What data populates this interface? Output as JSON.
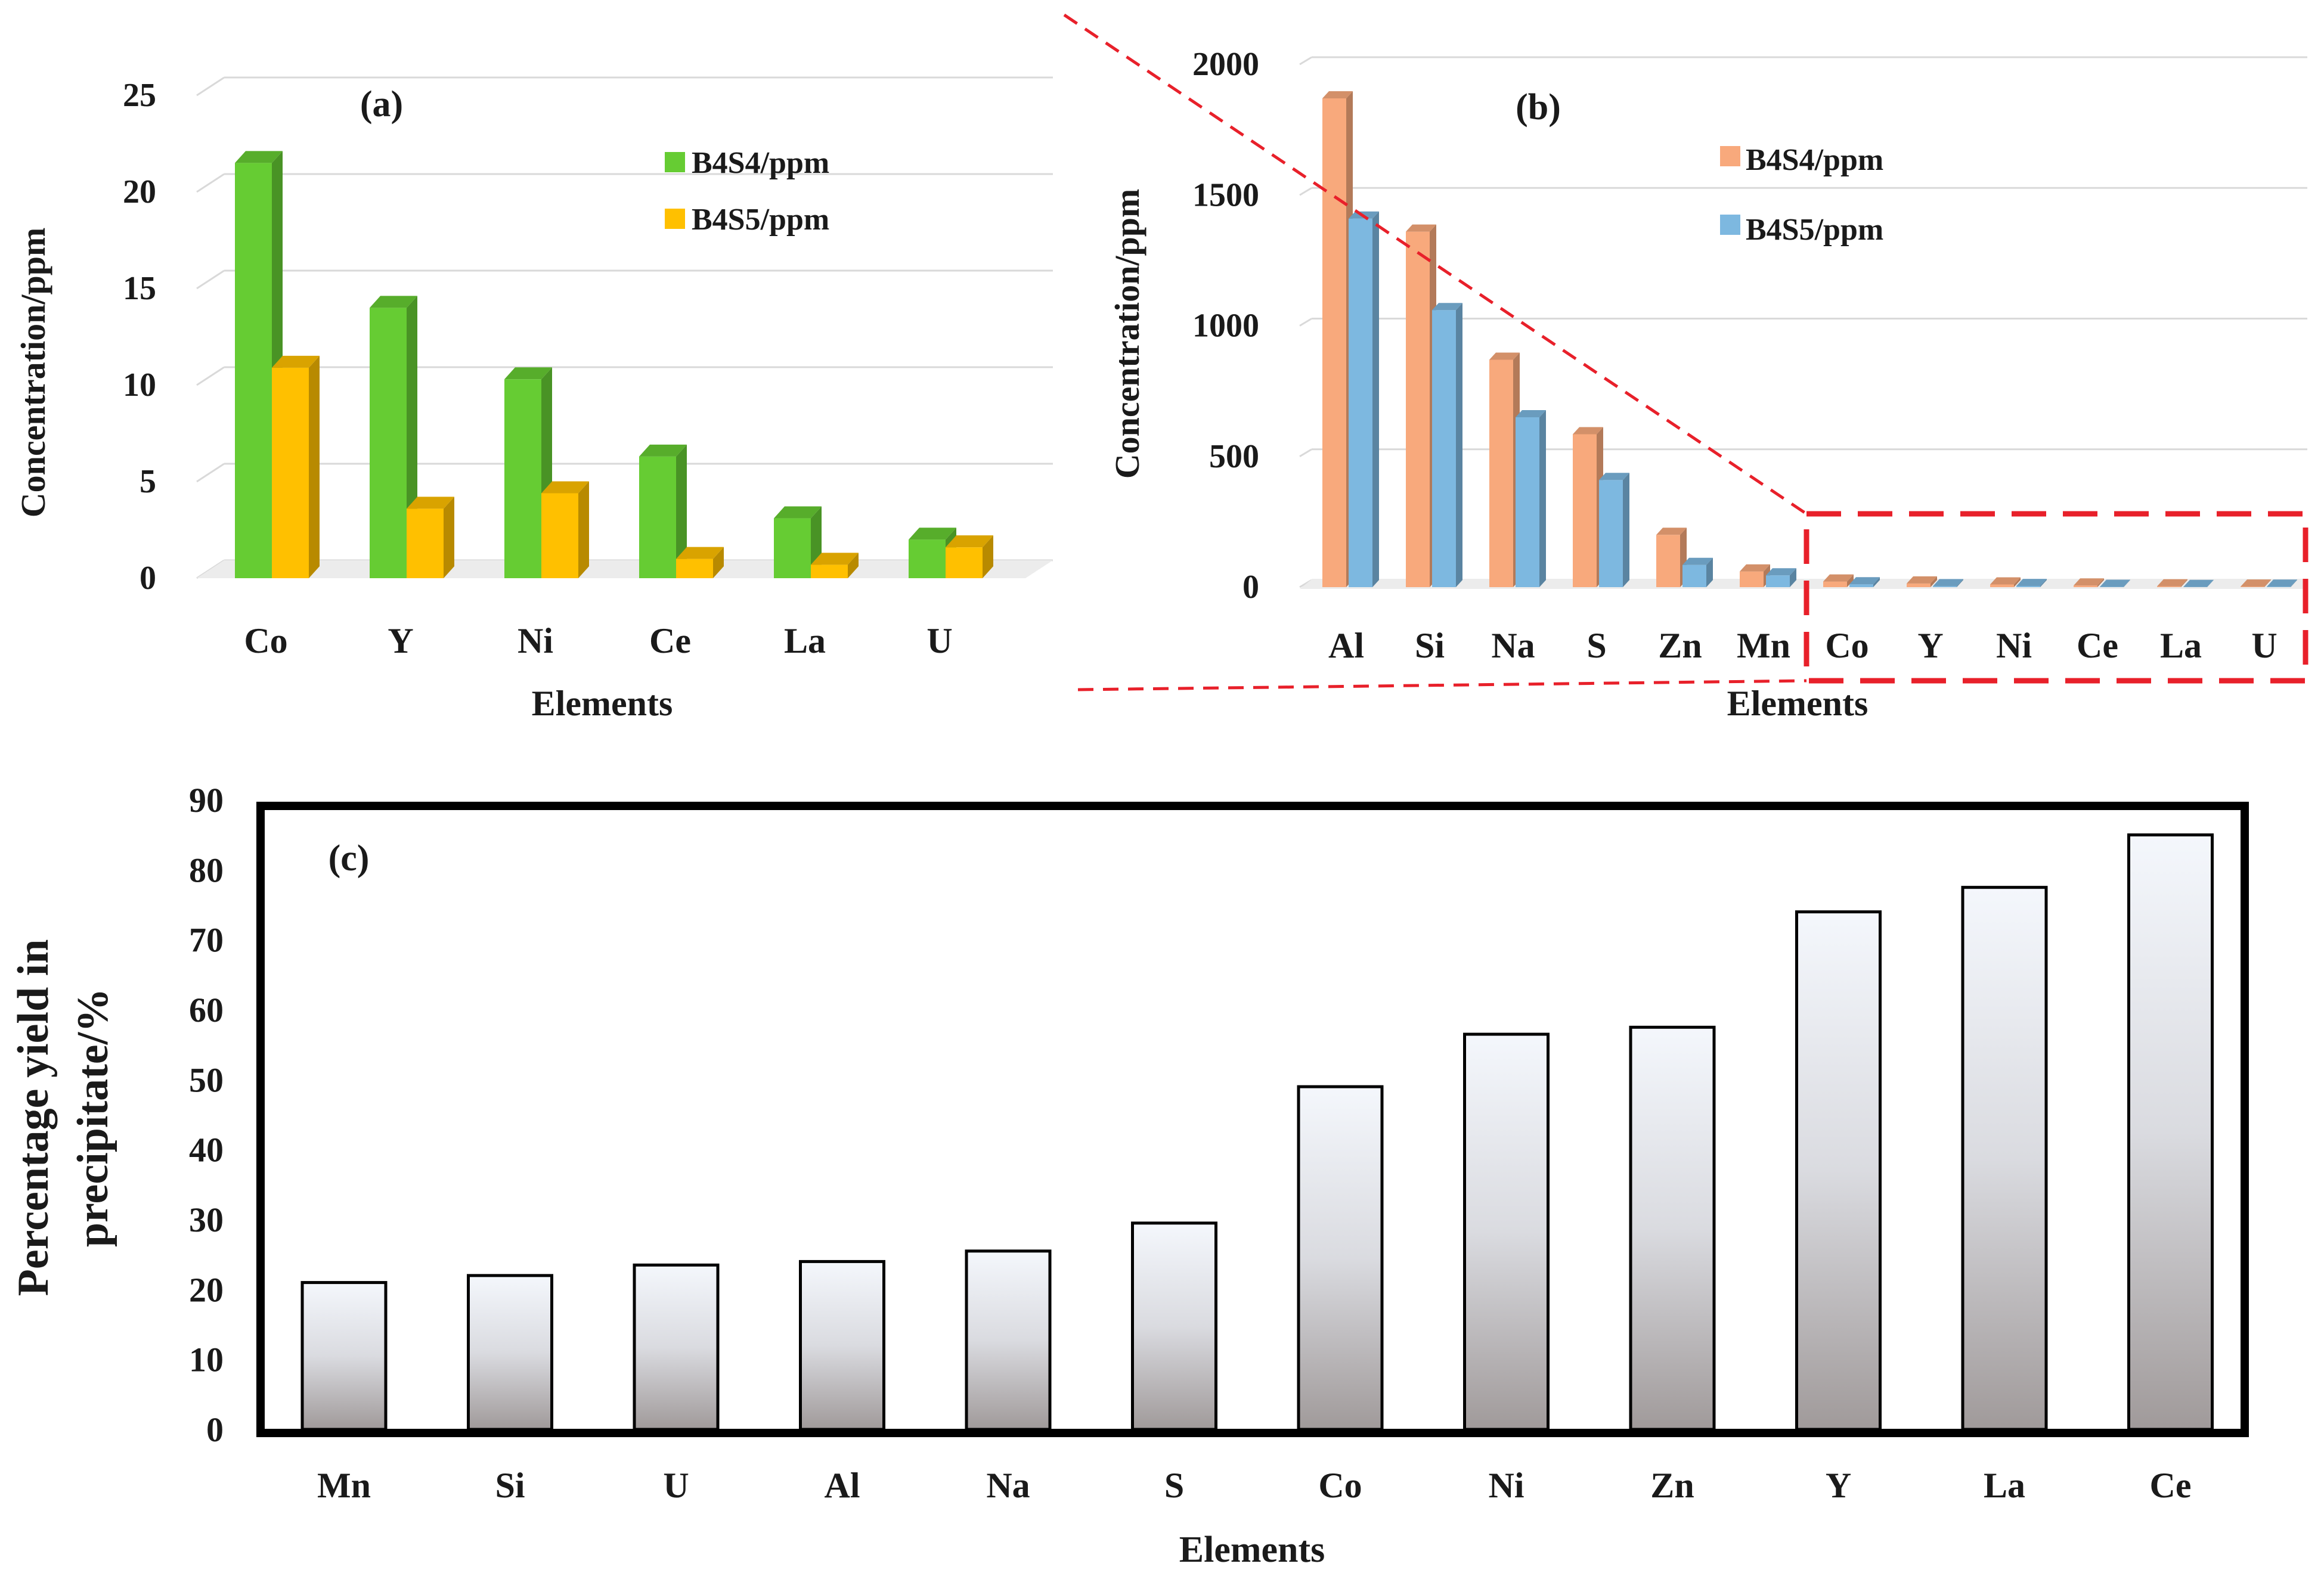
{
  "chart_data": [
    {
      "id": "a",
      "type": "bar",
      "panel_label": "(a)",
      "categories": [
        "Co",
        "Y",
        "Ni",
        "Ce",
        "La",
        "U"
      ],
      "series": [
        {
          "name": "B4S4/ppm",
          "values": [
            21.5,
            14.0,
            10.3,
            6.3,
            3.1,
            2.0
          ]
        },
        {
          "name": "B4S5/ppm",
          "values": [
            10.9,
            3.6,
            4.4,
            1.0,
            0.7,
            1.6
          ]
        }
      ],
      "colors": [
        "#66cc33",
        "#ffc000"
      ],
      "yticks": [
        0,
        5,
        10,
        15,
        20,
        25
      ],
      "ylim": [
        0,
        25
      ],
      "xlabel": "Elements",
      "ylabel": "Concentration/ppm",
      "legend": "top-right",
      "grid": true
    },
    {
      "id": "b",
      "type": "bar",
      "panel_label": "(b)",
      "categories": [
        "Al",
        "Si",
        "Na",
        "S",
        "Zn",
        "Mn",
        "Co",
        "Y",
        "Ni",
        "Ce",
        "La",
        "U"
      ],
      "series": [
        {
          "name": "B4S4/ppm",
          "values": [
            1870,
            1360,
            870,
            585,
            200,
            60,
            21.5,
            14.0,
            10.3,
            6.3,
            3.1,
            2.0
          ]
        },
        {
          "name": "B4S5/ppm",
          "values": [
            1410,
            1060,
            650,
            410,
            85,
            45,
            10.9,
            3.6,
            4.4,
            1.0,
            0.7,
            1.6
          ]
        }
      ],
      "colors": [
        "#f8a97c",
        "#7db8e0"
      ],
      "yticks": [
        0,
        500,
        1000,
        1500,
        2000
      ],
      "ylim": [
        0,
        2000
      ],
      "xlabel": "Elements",
      "ylabel": "Concentration/ppm",
      "legend": "top-center",
      "grid": true,
      "annotation": "dashed red box enlarging Co–U region"
    },
    {
      "id": "c",
      "type": "bar",
      "panel_label": "(c)",
      "categories": [
        "Mn",
        "Si",
        "U",
        "Al",
        "Na",
        "S",
        "Co",
        "Ni",
        "Zn",
        "Y",
        "La",
        "Ce"
      ],
      "values": [
        21,
        22,
        23.5,
        24,
        25.5,
        29.5,
        49,
        56.5,
        57.5,
        74,
        77.5,
        85
      ],
      "yticks": [
        0,
        10,
        20,
        30,
        40,
        50,
        60,
        70,
        80,
        90
      ],
      "ylim": [
        0,
        90
      ],
      "xlabel": "Elements",
      "ylabel_lines": [
        "Percentage yield in",
        "precipitate/%"
      ],
      "grid": false
    }
  ]
}
